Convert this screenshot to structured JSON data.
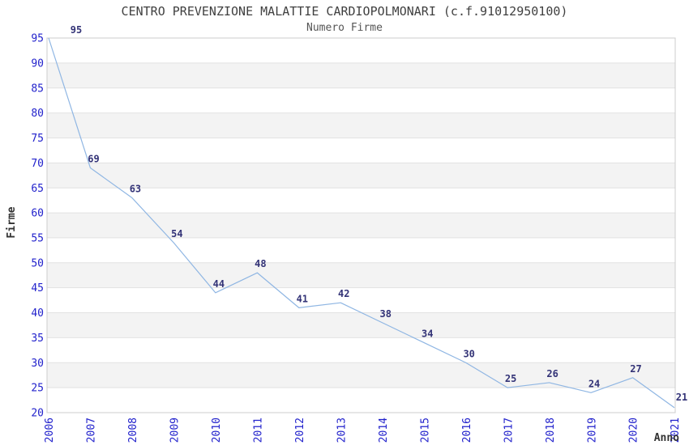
{
  "header": {
    "title": "CENTRO PREVENZIONE MALATTIE CARDIOPOLMONARI (c.f.91012950100)",
    "subtitle": "Numero Firme"
  },
  "chart_data": {
    "type": "line",
    "title": "CENTRO PREVENZIONE MALATTIE CARDIOPOLMONARI (c.f.91012950100)",
    "subtitle": "Numero Firme",
    "xlabel": "Anno",
    "ylabel": "Firme",
    "categories": [
      "2006",
      "2007",
      "2008",
      "2009",
      "2010",
      "2011",
      "2012",
      "2013",
      "2014",
      "2015",
      "2016",
      "2017",
      "2018",
      "2019",
      "2020",
      "2021"
    ],
    "values": [
      95,
      69,
      63,
      54,
      44,
      48,
      41,
      42,
      38,
      34,
      30,
      25,
      26,
      24,
      27,
      21
    ],
    "ylim": [
      20,
      95
    ],
    "ytick_step": 5,
    "grid": true,
    "alternating_bands": true,
    "legend_position": "none",
    "data_labels_visible": true,
    "colors": {
      "line": "#8fb6e3",
      "tick_label": "#2222cc",
      "data_label": "#333377",
      "band": "#f3f3f3",
      "gridline": "#e2e2e2",
      "plot_border": "#cccccc",
      "title": "#404040",
      "subtitle": "#555555",
      "axis_title": "#333333"
    },
    "label_offsets": {
      "default": [
        4,
        -7
      ],
      "first": [
        34,
        -6
      ],
      "last": [
        9,
        -9
      ]
    }
  }
}
